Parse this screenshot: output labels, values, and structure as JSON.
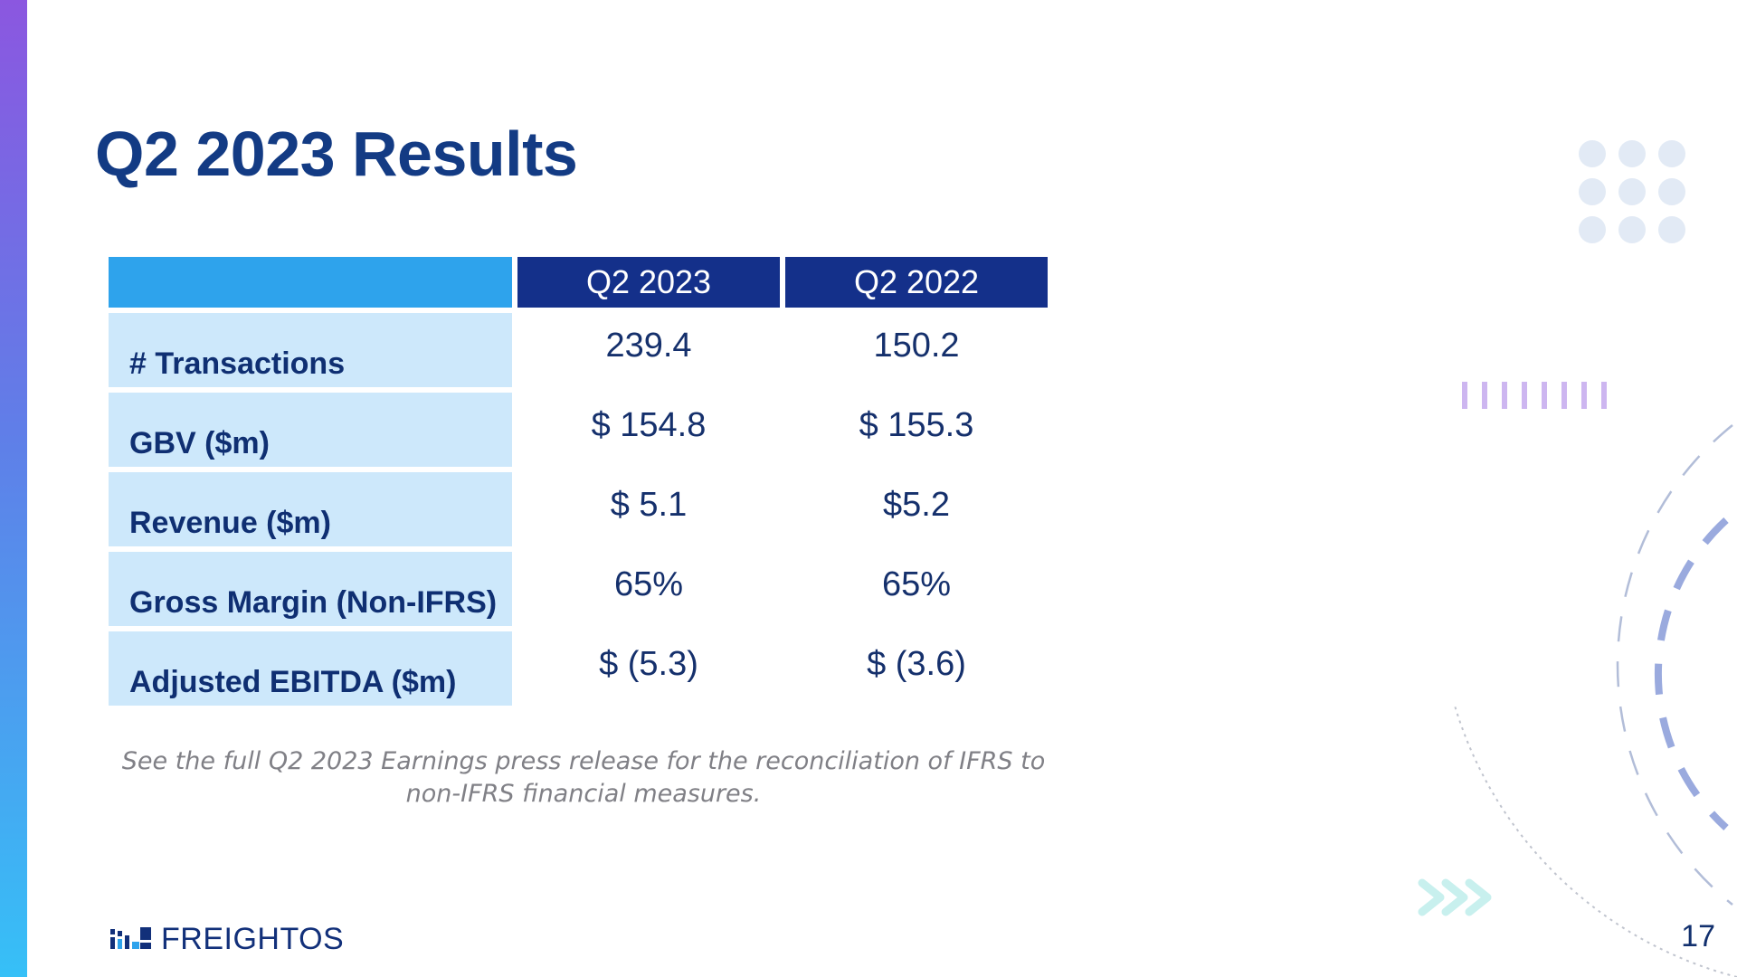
{
  "slide": {
    "title": "Q2 2023 Results",
    "page_number": "17"
  },
  "table": {
    "columns": [
      "Q2 2023",
      "Q2 2022"
    ],
    "rows": [
      {
        "label": "# Transactions",
        "values": [
          "239.4",
          "150.2"
        ]
      },
      {
        "label": "GBV ($m)",
        "values": [
          "$ 154.8",
          "$ 155.3"
        ]
      },
      {
        "label": "Revenue ($m)",
        "values": [
          "$ 5.1",
          "$5.2"
        ]
      },
      {
        "label": "Gross Margin (Non-IFRS)",
        "values": [
          "65%",
          "65%"
        ]
      },
      {
        "label": "Adjusted EBITDA ($m)",
        "values": [
          "$ (5.3)",
          "$ (3.6)"
        ]
      }
    ]
  },
  "footnote": {
    "line1": "See the full Q2 2023 Earnings press release for the reconciliation of IFRS to",
    "line2": "non-IFRS financial measures."
  },
  "logo": {
    "text": "FREIGHTOS",
    "icon": "freightos-logo-icon"
  },
  "colors": {
    "title": "#133b84",
    "header": "#14308a",
    "header_corner": "#2ea3ec",
    "label_cell": "#cde8fb"
  },
  "decorations": {
    "dots": "dot-grid-icon",
    "bars": "vertical-bars-icon",
    "arcs": "dashed-arc-icon",
    "chevrons": "chevron-arrows-icon"
  }
}
